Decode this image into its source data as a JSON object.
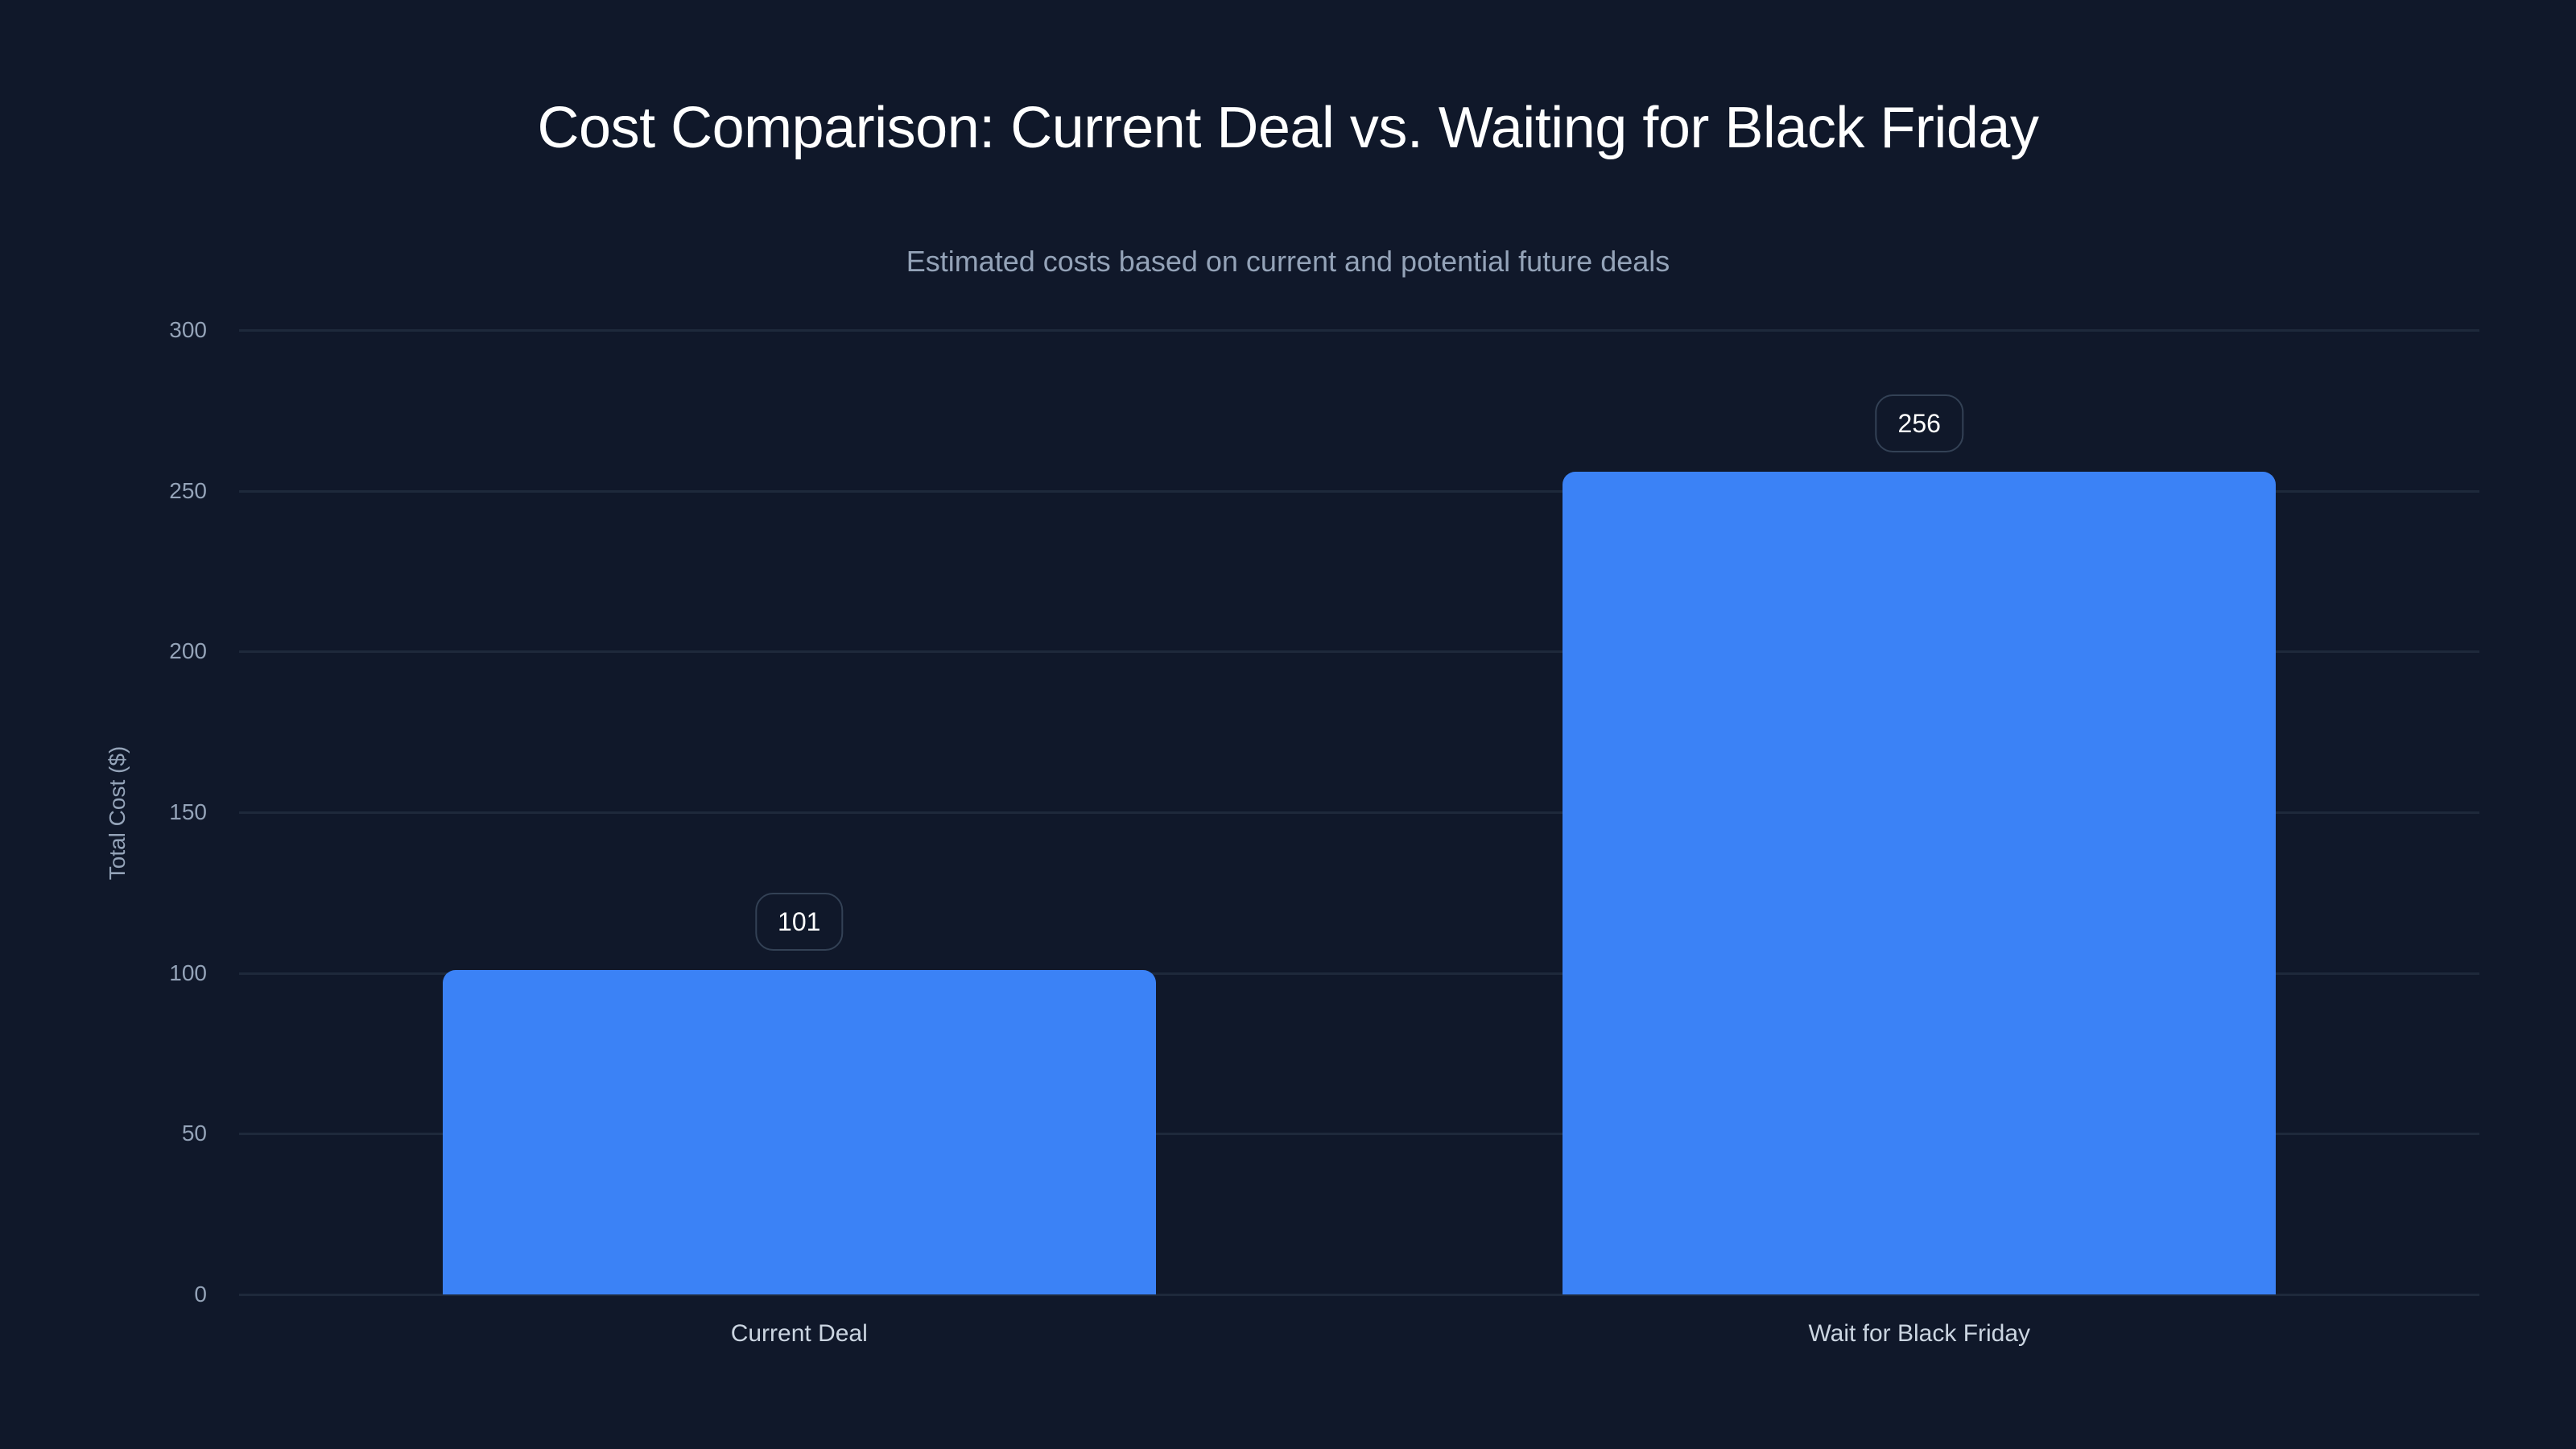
{
  "chart": {
    "title": "Cost Comparison: Current Deal vs. Waiting for Black Friday",
    "subtitle": "Estimated costs based on current and potential future deals",
    "ylabel": "Total Cost ($)",
    "yticks": [
      "0",
      "50",
      "100",
      "150",
      "200",
      "250",
      "300"
    ],
    "categories": [
      "Current Deal",
      "Wait for Black Friday"
    ],
    "value_labels": [
      "101",
      "256"
    ],
    "colors": {
      "bar": "#3b82f6",
      "background": "#10182a",
      "grid": "#1e293b"
    }
  },
  "chart_data": {
    "type": "bar",
    "title": "Cost Comparison: Current Deal vs. Waiting for Black Friday",
    "subtitle": "Estimated costs based on current and potential future deals",
    "categories": [
      "Current Deal",
      "Wait for Black Friday"
    ],
    "values": [
      101,
      256
    ],
    "xlabel": "",
    "ylabel": "Total Cost ($)",
    "ylim": [
      0,
      300
    ],
    "yticks": [
      0,
      50,
      100,
      150,
      200,
      250,
      300
    ],
    "grid": true,
    "legend": null,
    "data_labels": true
  }
}
